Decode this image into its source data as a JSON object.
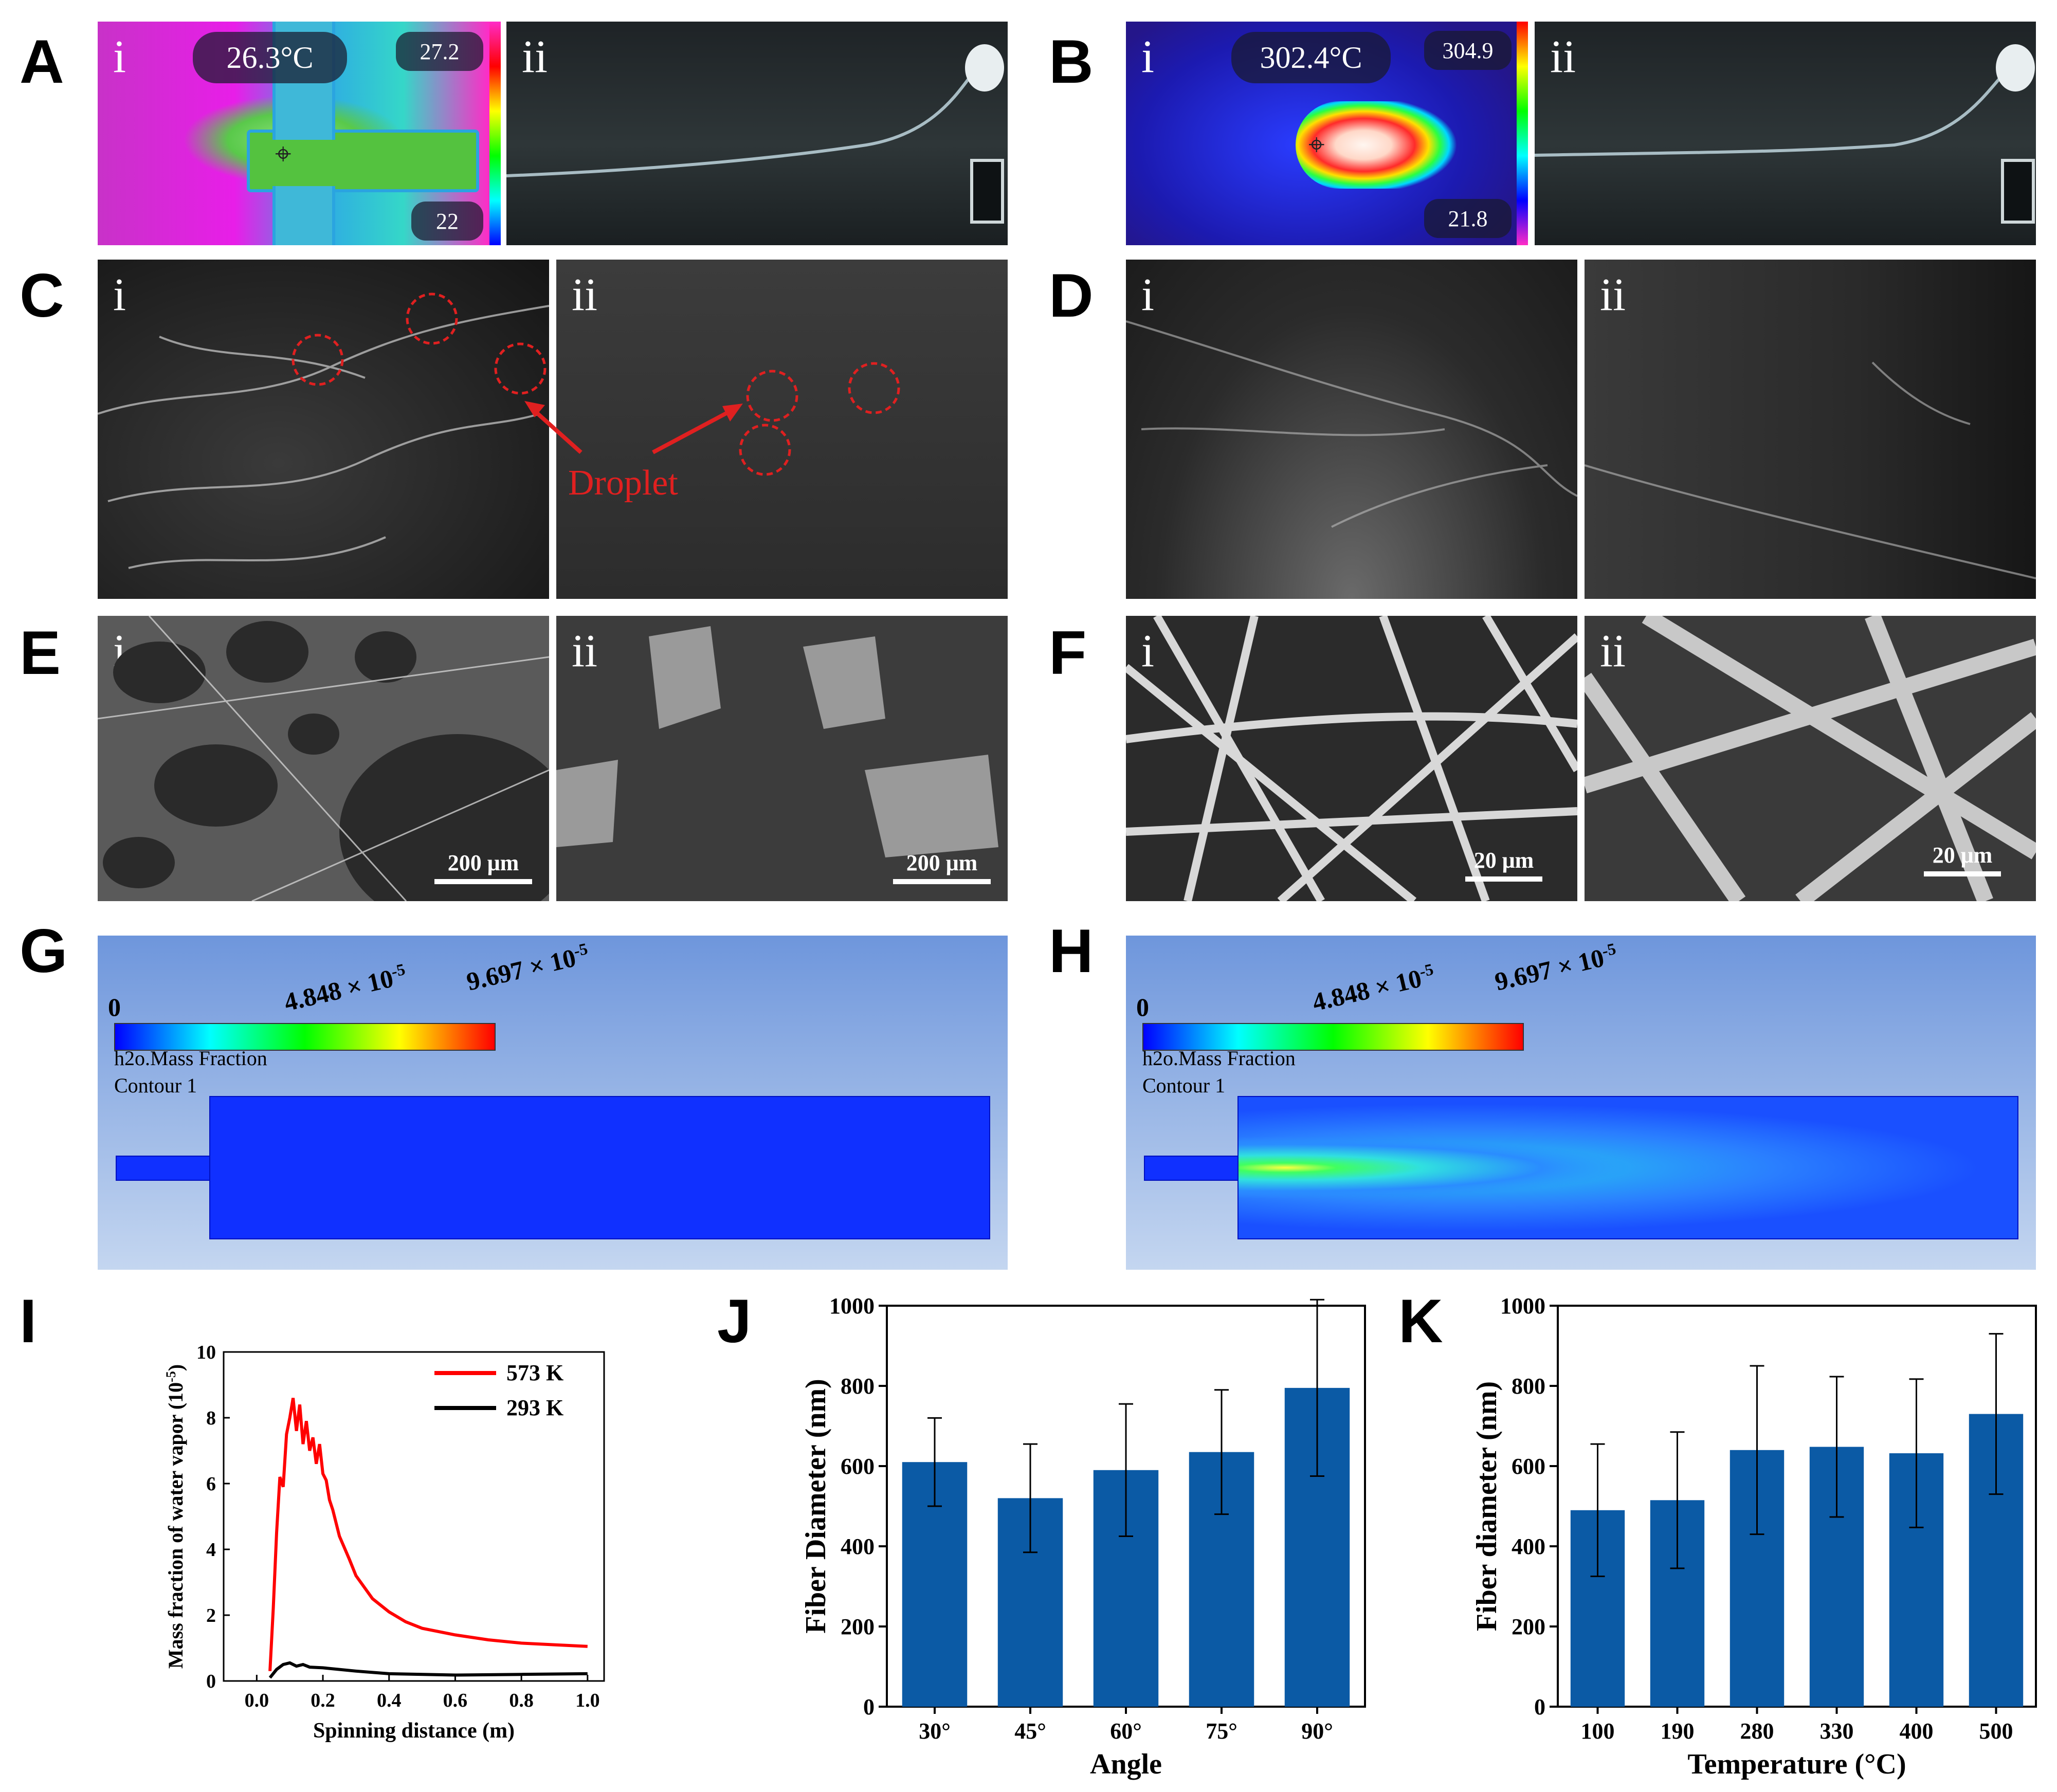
{
  "panel_labels": {
    "A": "A",
    "B": "B",
    "C": "C",
    "D": "D",
    "E": "E",
    "F": "F",
    "G": "G",
    "H": "H",
    "I": "I",
    "J": "J",
    "K": "K"
  },
  "sub": {
    "i": "i",
    "ii": "ii"
  },
  "panelA": {
    "temp_main": "26.3°C",
    "temp_max": "27.2",
    "temp_min": "22"
  },
  "panelB": {
    "temp_main": "302.4°C",
    "temp_max": "304.9",
    "temp_min": "21.8"
  },
  "panelC": {
    "annotation": "Droplet"
  },
  "panelE": {
    "scale_bar": "200 μm"
  },
  "panelF": {
    "scale_bar": "20 μm"
  },
  "colorbar": {
    "min": "0",
    "mid": "4.848 × 10",
    "mid_exp": "-5",
    "max": "9.697 × 10",
    "max_exp": "-5",
    "variable": "h2o.Mass Fraction",
    "contour": "Contour 1",
    "colors": [
      "#0000ff",
      "#00ffff",
      "#00ff00",
      "#ffff00",
      "#ff0000"
    ]
  },
  "chart_data": [
    {
      "type": "line",
      "panel": "I",
      "xlabel": "Spinning distance (m)",
      "ylabel": "Mass fraction of water vapor (10",
      "ylabel_exp": "-5",
      "ylabel_end": ")",
      "xlim": [
        -0.1,
        1.05
      ],
      "ylim": [
        0,
        10
      ],
      "xticks": [
        "0.0",
        "0.2",
        "0.4",
        "0.6",
        "0.8",
        "1.0"
      ],
      "yticks": [
        "0",
        "2",
        "4",
        "6",
        "8",
        "10"
      ],
      "legend_position": "top-right",
      "series": [
        {
          "name": "573 K",
          "color": "#ff0000",
          "x": [
            0.04,
            0.05,
            0.06,
            0.07,
            0.08,
            0.09,
            0.1,
            0.11,
            0.12,
            0.13,
            0.14,
            0.15,
            0.16,
            0.17,
            0.18,
            0.19,
            0.2,
            0.21,
            0.22,
            0.23,
            0.25,
            0.28,
            0.3,
            0.35,
            0.4,
            0.45,
            0.5,
            0.6,
            0.7,
            0.8,
            0.9,
            1.0
          ],
          "y": [
            0.3,
            2.2,
            4.5,
            6.2,
            5.9,
            7.5,
            8.0,
            8.6,
            7.6,
            8.4,
            7.2,
            7.9,
            7.0,
            7.4,
            6.6,
            7.2,
            6.3,
            6.1,
            5.5,
            5.2,
            4.4,
            3.7,
            3.2,
            2.5,
            2.1,
            1.8,
            1.6,
            1.4,
            1.25,
            1.15,
            1.1,
            1.05
          ]
        },
        {
          "name": "293 K",
          "color": "#000000",
          "x": [
            0.04,
            0.06,
            0.08,
            0.1,
            0.12,
            0.14,
            0.16,
            0.2,
            0.3,
            0.4,
            0.6,
            0.8,
            1.0
          ],
          "y": [
            0.1,
            0.35,
            0.5,
            0.55,
            0.45,
            0.5,
            0.42,
            0.4,
            0.3,
            0.22,
            0.18,
            0.2,
            0.22
          ]
        }
      ]
    },
    {
      "type": "bar",
      "panel": "J",
      "xlabel": "Angle",
      "ylabel": "Fiber Diameter (nm)",
      "categories": [
        "30°",
        "45°",
        "60°",
        "75°",
        "90°"
      ],
      "values": [
        610,
        520,
        590,
        635,
        795
      ],
      "errors": [
        110,
        135,
        165,
        155,
        220
      ],
      "ylim": [
        0,
        1000
      ],
      "yticks": [
        "0",
        "200",
        "400",
        "600",
        "800",
        "1000"
      ],
      "color": "#0b5aa5"
    },
    {
      "type": "bar",
      "panel": "K",
      "xlabel": "Temperature (°C)",
      "ylabel": "Fiber diameter (nm)",
      "categories": [
        "100",
        "190",
        "280",
        "330",
        "400",
        "500"
      ],
      "values": [
        490,
        515,
        640,
        648,
        632,
        730
      ],
      "errors": [
        165,
        170,
        210,
        175,
        185,
        200
      ],
      "ylim": [
        0,
        1000
      ],
      "yticks": [
        "0",
        "200",
        "400",
        "600",
        "800",
        "1000"
      ],
      "color": "#0b5aa5"
    }
  ]
}
